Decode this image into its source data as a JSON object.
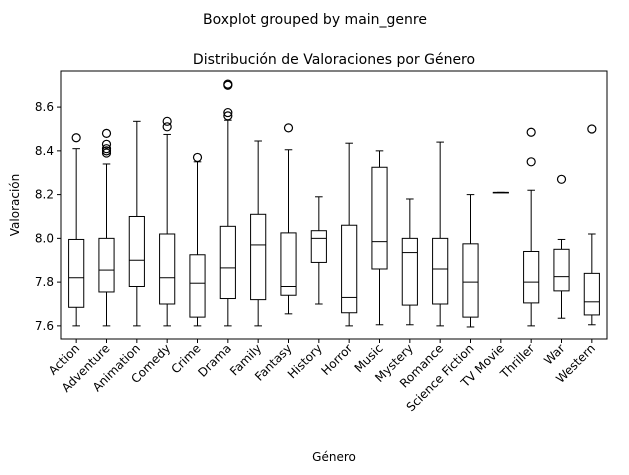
{
  "chart_data": {
    "type": "boxplot",
    "suptitle": "Boxplot grouped by main_genre",
    "title": "Distribución de Valoraciones por Género",
    "xlabel": "Género",
    "ylabel": "Valoración",
    "ylim": [
      7.54,
      8.765
    ],
    "yticks": [
      7.6,
      7.8,
      8.0,
      8.2,
      8.4,
      8.6
    ],
    "grid": false,
    "legend": "none",
    "colors": {
      "box": "#000000",
      "median": "#000000",
      "flier": "#000000"
    },
    "categories": [
      "Action",
      "Adventure",
      "Animation",
      "Comedy",
      "Crime",
      "Drama",
      "Family",
      "Fantasy",
      "History",
      "Horror",
      "Music",
      "Mystery",
      "Romance",
      "Science Fiction",
      "TV Movie",
      "Thriller",
      "War",
      "Western"
    ],
    "boxes": [
      {
        "whislo": 7.6,
        "q1": 7.685,
        "med": 7.82,
        "q3": 7.995,
        "whishi": 8.41,
        "fliers": [
          8.46
        ]
      },
      {
        "whislo": 7.6,
        "q1": 7.755,
        "med": 7.855,
        "q3": 8.0,
        "whishi": 8.34,
        "fliers": [
          8.39,
          8.4,
          8.41,
          8.43,
          8.48
        ]
      },
      {
        "whislo": 7.6,
        "q1": 7.78,
        "med": 7.9,
        "q3": 8.1,
        "whishi": 8.535,
        "fliers": []
      },
      {
        "whislo": 7.6,
        "q1": 7.7,
        "med": 7.82,
        "q3": 8.02,
        "whishi": 8.475,
        "fliers": [
          8.51,
          8.535
        ]
      },
      {
        "whislo": 7.6,
        "q1": 7.64,
        "med": 7.795,
        "q3": 7.925,
        "whishi": 8.35,
        "fliers": [
          8.37
        ]
      },
      {
        "whislo": 7.6,
        "q1": 7.725,
        "med": 7.865,
        "q3": 8.055,
        "whishi": 8.54,
        "fliers": [
          8.56,
          8.575,
          8.7,
          8.705
        ]
      },
      {
        "whislo": 7.6,
        "q1": 7.72,
        "med": 7.97,
        "q3": 8.11,
        "whishi": 8.445,
        "fliers": []
      },
      {
        "whislo": 7.655,
        "q1": 7.74,
        "med": 7.78,
        "q3": 8.025,
        "whishi": 8.405,
        "fliers": [
          8.505
        ]
      },
      {
        "whislo": 7.7,
        "q1": 7.89,
        "med": 8.0,
        "q3": 8.035,
        "whishi": 8.19,
        "fliers": []
      },
      {
        "whislo": 7.6,
        "q1": 7.66,
        "med": 7.73,
        "q3": 8.06,
        "whishi": 8.435,
        "fliers": []
      },
      {
        "whislo": 7.605,
        "q1": 7.86,
        "med": 7.985,
        "q3": 8.325,
        "whishi": 8.4,
        "fliers": []
      },
      {
        "whislo": 7.605,
        "q1": 7.695,
        "med": 7.935,
        "q3": 8.0,
        "whishi": 8.18,
        "fliers": []
      },
      {
        "whislo": 7.6,
        "q1": 7.7,
        "med": 7.86,
        "q3": 8.0,
        "whishi": 8.44,
        "fliers": []
      },
      {
        "whislo": 7.595,
        "q1": 7.64,
        "med": 7.8,
        "q3": 7.975,
        "whishi": 8.2,
        "fliers": []
      },
      {
        "whislo": 8.21,
        "q1": 8.21,
        "med": 8.21,
        "q3": 8.21,
        "whishi": 8.21,
        "fliers": []
      },
      {
        "whislo": 7.6,
        "q1": 7.705,
        "med": 7.8,
        "q3": 7.94,
        "whishi": 8.22,
        "fliers": [
          8.35,
          8.485
        ]
      },
      {
        "whislo": 7.635,
        "q1": 7.76,
        "med": 7.825,
        "q3": 7.95,
        "whishi": 7.995,
        "fliers": [
          8.27
        ]
      },
      {
        "whislo": 7.605,
        "q1": 7.65,
        "med": 7.71,
        "q3": 7.84,
        "whishi": 8.02,
        "fliers": [
          8.5
        ]
      }
    ]
  }
}
